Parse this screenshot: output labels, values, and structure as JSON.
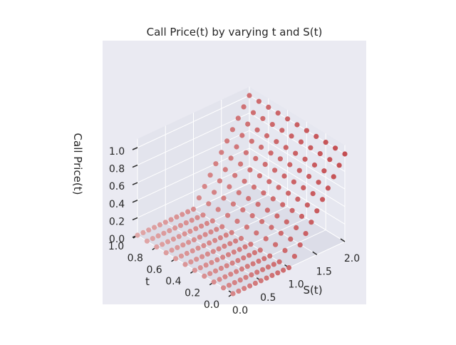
{
  "chart_data": {
    "type": "scatter",
    "projection": "3d",
    "title": "Call Price(t) by varying t and S(t)",
    "xlabel": "S(t)",
    "ylabel": "t",
    "zlabel": "Call Price(t)",
    "xlim": [
      0,
      2
    ],
    "ylim": [
      0,
      1
    ],
    "zlim": [
      0,
      1.1
    ],
    "x_ticks": [
      "0.0",
      "0.5",
      "1.0",
      "1.5",
      "2.0"
    ],
    "y_ticks": [
      "0.0",
      "0.2",
      "0.4",
      "0.6",
      "0.8",
      "1.0"
    ],
    "z_ticks": [
      "0.0",
      "0.2",
      "0.4",
      "0.6",
      "0.8",
      "1.0"
    ],
    "strike": 1.0,
    "s_values": [
      0,
      0.1,
      0.2,
      0.3,
      0.4,
      0.5,
      0.6,
      0.7,
      0.8,
      0.9,
      1.0,
      1.1,
      1.2,
      1.3,
      1.4,
      1.5,
      1.6,
      1.7,
      1.8,
      1.9,
      2.0
    ],
    "t_values": [
      0,
      0.1,
      0.2,
      0.3,
      0.4,
      0.5,
      0.6,
      0.7,
      0.8,
      0.9,
      1.0
    ],
    "marker_color": "#c44e52",
    "grid": true,
    "pane_color": "#e5e6ef",
    "figure_background": "#eaeaf2"
  }
}
